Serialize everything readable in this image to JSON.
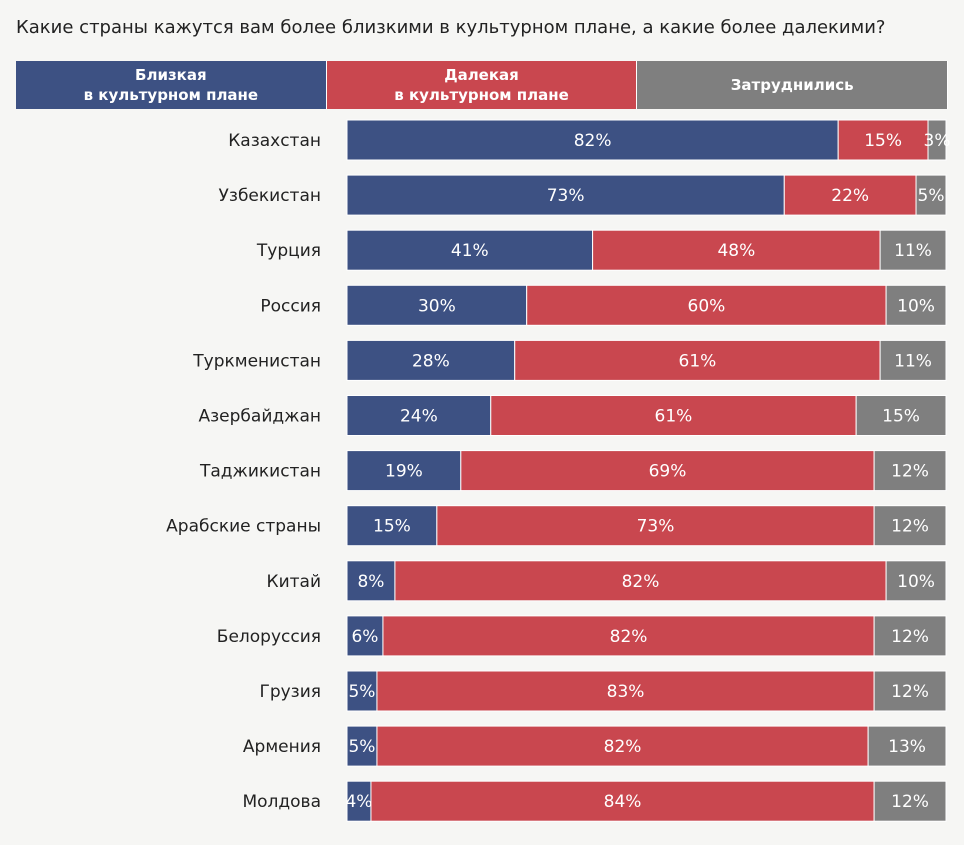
{
  "chart_data": {
    "type": "stacked-bar",
    "title": "Какие страны кажутся вам более близкими в культурном плане, а какие более далекими?",
    "categories": [
      "Казахстан",
      "Узбекистан",
      "Турция",
      "Россия",
      "Туркменистан",
      "Азербайджан",
      "Таджикистан",
      "Арабские страны",
      "Китай",
      "Белоруссия",
      "Грузия",
      "Армения",
      "Молдова"
    ],
    "series": [
      {
        "name": "Близкая\nв культурном плане",
        "color": "#3d5183",
        "values": [
          82,
          73,
          41,
          30,
          28,
          24,
          19,
          15,
          8,
          6,
          5,
          5,
          4
        ],
        "value_labels": [
          "82%",
          "73%",
          "41%",
          "30%",
          "28%",
          "24%",
          "19%",
          "15%",
          "8%",
          "6%",
          "5%",
          "5%",
          "4%"
        ]
      },
      {
        "name": "Далекая\nв культурном плане",
        "color": "#c9474f",
        "values": [
          15,
          22,
          48,
          60,
          61,
          61,
          69,
          73,
          82,
          82,
          83,
          82,
          84
        ],
        "value_labels": [
          "15%",
          "22%",
          "48%",
          "60%",
          "61%",
          "61%",
          "69%",
          "73%",
          "82%",
          "82%",
          "83%",
          "82%",
          "84%"
        ]
      },
      {
        "name": "Затруднились",
        "color": "#7f7f7f",
        "values": [
          3,
          5,
          11,
          10,
          11,
          15,
          12,
          12,
          10,
          12,
          12,
          13,
          12
        ],
        "value_labels": [
          "3%",
          "5%",
          "11%",
          "10%",
          "11%",
          "15%",
          "12%",
          "12%",
          "10%",
          "12%",
          "12%",
          "13%",
          "12%"
        ]
      }
    ]
  }
}
